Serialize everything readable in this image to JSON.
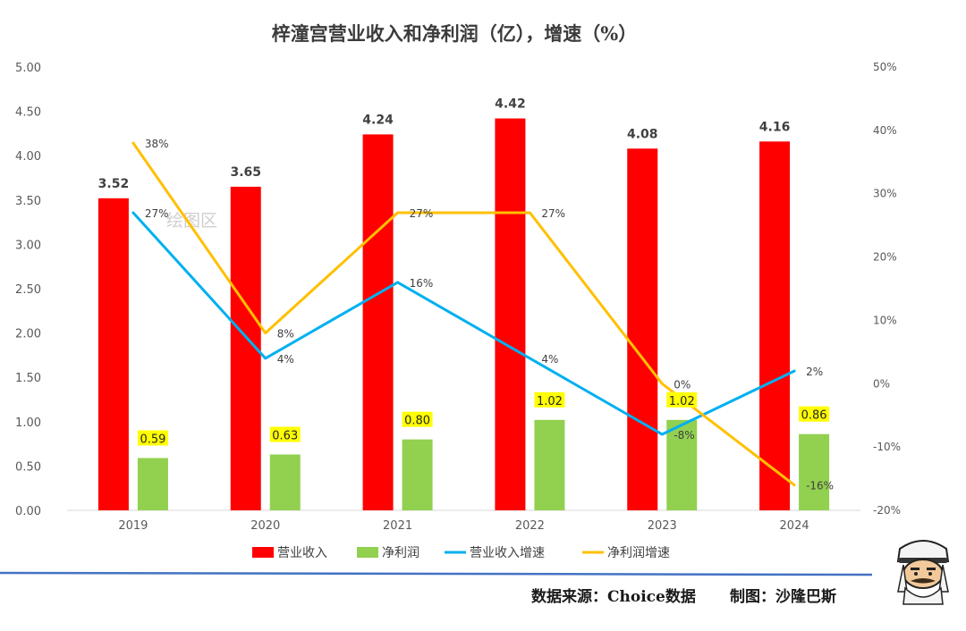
{
  "chart_data": {
    "type": "bar",
    "title": "梓潼宫营业收入和净利润（亿），增速（%）",
    "categories": [
      "2019",
      "2020",
      "2021",
      "2022",
      "2023",
      "2024"
    ],
    "series": [
      {
        "name": "营业收入",
        "type": "bar",
        "axis": "left",
        "color": "#ff0000",
        "values": [
          3.52,
          3.65,
          4.24,
          4.42,
          4.08,
          4.16
        ],
        "labels": [
          "3.52",
          "3.65",
          "4.24",
          "4.42",
          "4.08",
          "4.16"
        ]
      },
      {
        "name": "净利润",
        "type": "bar",
        "axis": "left",
        "color": "#92d050",
        "values": [
          0.59,
          0.63,
          0.8,
          1.02,
          1.02,
          0.86
        ],
        "labels": [
          "0.59",
          "0.63",
          "0.80",
          "1.02",
          "1.02",
          "0.86"
        ]
      },
      {
        "name": "营业收入增速",
        "type": "line",
        "axis": "right",
        "color": "#00b0f0",
        "values": [
          27,
          4,
          16,
          4,
          -8,
          2
        ],
        "labels": [
          "27%",
          "4%",
          "16%",
          "4%",
          "-8%",
          "2%"
        ]
      },
      {
        "name": "净利润增速",
        "type": "line",
        "axis": "right",
        "color": "#ffc000",
        "values": [
          38,
          8,
          27,
          27,
          0,
          -16
        ],
        "labels": [
          "38%",
          "8%",
          "27%",
          "27%",
          "0%",
          "-16%"
        ]
      }
    ],
    "y_left": {
      "range": [
        0,
        5
      ],
      "ticks": [
        "0.00",
        "0.50",
        "1.00",
        "1.50",
        "2.00",
        "2.50",
        "3.00",
        "3.50",
        "4.00",
        "4.50",
        "5.00"
      ]
    },
    "y_right": {
      "range": [
        -20,
        50
      ],
      "ticks": [
        "-20%",
        "-10%",
        "0%",
        "10%",
        "20%",
        "30%",
        "40%",
        "50%"
      ]
    },
    "grid": false,
    "legend_position": "bottom",
    "label_highlight_color": "#ffff00"
  },
  "watermark": "绘图区",
  "footer": {
    "source": "数据来源：Choice数据",
    "author": "制图：沙隆巴斯"
  }
}
